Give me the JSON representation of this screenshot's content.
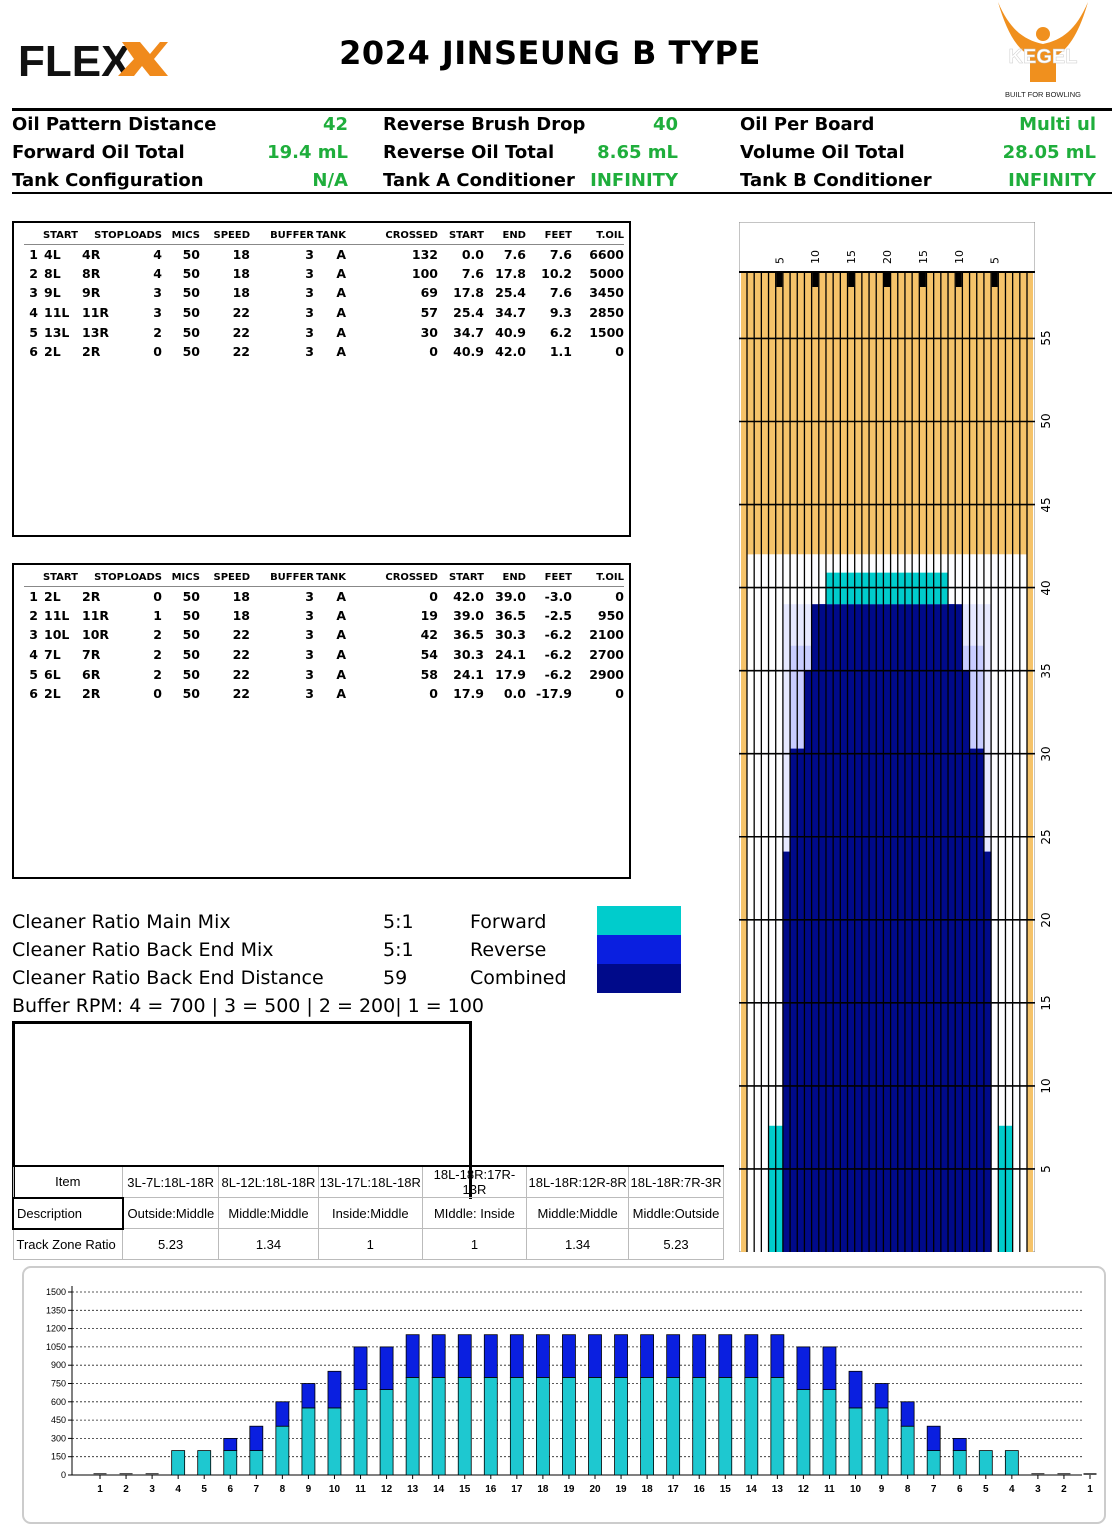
{
  "header": {
    "brand": "FLEX",
    "title": "2024 JINSEUNG B TYPE",
    "kegel_text": "KEGEL",
    "kegel_tagline": "BUILT FOR BOWLING"
  },
  "summary": [
    {
      "label": "Oil Pattern Distance",
      "value": "42"
    },
    {
      "label": "Forward Oil Total",
      "value": "19.4 mL"
    },
    {
      "label": "Tank Configuration",
      "value": "N/A"
    },
    {
      "label": "Reverse Brush Drop",
      "value": "40"
    },
    {
      "label": "Reverse Oil Total",
      "value": "8.65 mL"
    },
    {
      "label": "Tank A Conditioner",
      "value": "INFINITY"
    },
    {
      "label": "Oil Per Board",
      "value": "Multi ul"
    },
    {
      "label": "Volume Oil Total",
      "value": "28.05 mL"
    },
    {
      "label": "Tank B Conditioner",
      "value": "INFINITY"
    }
  ],
  "table_headers": [
    "",
    "START",
    "STOP",
    "LOADS",
    "MICS",
    "SPEED",
    "BUFFER",
    "TANK",
    "CROSSED",
    "START",
    "END",
    "FEET",
    "T.OIL"
  ],
  "forward_rows": [
    [
      "1",
      "4L",
      "4R",
      "4",
      "50",
      "18",
      "3",
      "A",
      "132",
      "0.0",
      "7.6",
      "7.6",
      "6600"
    ],
    [
      "2",
      "8L",
      "8R",
      "4",
      "50",
      "18",
      "3",
      "A",
      "100",
      "7.6",
      "17.8",
      "10.2",
      "5000"
    ],
    [
      "3",
      "9L",
      "9R",
      "3",
      "50",
      "18",
      "3",
      "A",
      "69",
      "17.8",
      "25.4",
      "7.6",
      "3450"
    ],
    [
      "4",
      "11L",
      "11R",
      "3",
      "50",
      "22",
      "3",
      "A",
      "57",
      "25.4",
      "34.7",
      "9.3",
      "2850"
    ],
    [
      "5",
      "13L",
      "13R",
      "2",
      "50",
      "22",
      "3",
      "A",
      "30",
      "34.7",
      "40.9",
      "6.2",
      "1500"
    ],
    [
      "6",
      "2L",
      "2R",
      "0",
      "50",
      "22",
      "3",
      "A",
      "0",
      "40.9",
      "42.0",
      "1.1",
      "0"
    ]
  ],
  "reverse_rows": [
    [
      "1",
      "2L",
      "2R",
      "0",
      "50",
      "18",
      "3",
      "A",
      "0",
      "42.0",
      "39.0",
      "-3.0",
      "0"
    ],
    [
      "2",
      "11L",
      "11R",
      "1",
      "50",
      "18",
      "3",
      "A",
      "19",
      "39.0",
      "36.5",
      "-2.5",
      "950"
    ],
    [
      "3",
      "10L",
      "10R",
      "2",
      "50",
      "22",
      "3",
      "A",
      "42",
      "36.5",
      "30.3",
      "-6.2",
      "2100"
    ],
    [
      "4",
      "7L",
      "7R",
      "2",
      "50",
      "22",
      "3",
      "A",
      "54",
      "30.3",
      "24.1",
      "-6.2",
      "2700"
    ],
    [
      "5",
      "6L",
      "6R",
      "2",
      "50",
      "22",
      "3",
      "A",
      "58",
      "24.1",
      "17.9",
      "-6.2",
      "2900"
    ],
    [
      "6",
      "2L",
      "2R",
      "0",
      "50",
      "22",
      "3",
      "A",
      "0",
      "17.9",
      "0.0",
      "-17.9",
      "0"
    ]
  ],
  "cleaner": [
    {
      "label": "Cleaner Ratio Main Mix",
      "value": "5:1"
    },
    {
      "label": "Cleaner Ratio Back End Mix",
      "value": "5:1"
    },
    {
      "label": "Cleaner Ratio Back End Distance",
      "value": "59"
    }
  ],
  "buffer_rpm": "Buffer RPM: 4 = 700 | 3 = 500 | 2 = 200| 1 = 100",
  "legend": [
    {
      "label": "Forward",
      "color": "#00cccc"
    },
    {
      "label": "Reverse",
      "color": "#0a1fe0"
    },
    {
      "label": "Combined",
      "color": "#000a8a"
    }
  ],
  "track_zone": {
    "header": [
      "Item",
      "3L-7L:18L-18R",
      "8L-12L:18L-18R",
      "13L-17L:18L-18R",
      "18L-18R:17R-13R",
      "18L-18R:12R-8R",
      "18L-18R:7R-3R"
    ],
    "description": [
      "Description",
      "Outside:Middle",
      "Middle:Middle",
      "Inside:Middle",
      "MIddle: Inside",
      "Middle:Middle",
      "Middle:Outside"
    ],
    "ratio": [
      "Track Zone Ratio",
      "5.23",
      "1.34",
      "1",
      "1",
      "1.34",
      "5.23"
    ]
  },
  "lane": {
    "board_labels": [
      "5",
      "10",
      "15",
      "20",
      "15",
      "10",
      "5"
    ],
    "distance_labels": [
      "55",
      "50",
      "45",
      "40",
      "35",
      "30",
      "25",
      "20",
      "15",
      "10",
      "5"
    ],
    "pattern_length": 42,
    "lane_length": 59,
    "forward_segments": [
      {
        "board_from": 4,
        "start": 0.0,
        "end": 7.6
      },
      {
        "board_from": 8,
        "start": 7.6,
        "end": 17.8
      },
      {
        "board_from": 9,
        "start": 17.8,
        "end": 25.4
      },
      {
        "board_from": 11,
        "start": 25.4,
        "end": 34.7
      },
      {
        "board_from": 13,
        "start": 34.7,
        "end": 40.9
      }
    ],
    "reverse_segments": [
      {
        "board_from": 11,
        "start": 36.5,
        "end": 39.0
      },
      {
        "board_from": 10,
        "start": 30.3,
        "end": 36.5
      },
      {
        "board_from": 7,
        "start": 24.1,
        "end": 30.3
      },
      {
        "board_from": 6,
        "start": 17.9,
        "end": 24.1
      }
    ],
    "colors": {
      "dry": "#f5c36a",
      "buffered": "#dde2ff",
      "forward": "#00cccc",
      "reverse": "#0a1fe0",
      "combined": "#000a8a"
    }
  },
  "chart_data": {
    "type": "bar",
    "title": "",
    "xlabel": "",
    "ylabel": "",
    "ylim": [
      0,
      1500
    ],
    "yticks": [
      "0",
      "150",
      "300",
      "450",
      "600",
      "750",
      "900",
      "1050",
      "1200",
      "1350",
      "1500"
    ],
    "categories": [
      "1",
      "2",
      "3",
      "4",
      "5",
      "6",
      "7",
      "8",
      "9",
      "10",
      "11",
      "12",
      "13",
      "14",
      "15",
      "16",
      "17",
      "18",
      "19",
      "20",
      "19",
      "18",
      "17",
      "16",
      "15",
      "14",
      "13",
      "12",
      "11",
      "10",
      "9",
      "8",
      "7",
      "6",
      "5",
      "4",
      "3",
      "2",
      "1"
    ],
    "series": [
      {
        "color": "#1ec8d0",
        "values": [
          0,
          0,
          0,
          200,
          200,
          200,
          200,
          400,
          550,
          550,
          700,
          700,
          800,
          800,
          800,
          800,
          800,
          800,
          800,
          800,
          800,
          800,
          800,
          800,
          800,
          800,
          800,
          700,
          700,
          550,
          550,
          400,
          200,
          200,
          200,
          200,
          0,
          0,
          0
        ]
      },
      {
        "color": "#0a1fe0",
        "values": [
          0,
          0,
          0,
          0,
          0,
          100,
          200,
          200,
          200,
          300,
          350,
          350,
          350,
          350,
          350,
          350,
          350,
          350,
          350,
          350,
          350,
          350,
          350,
          350,
          350,
          350,
          350,
          350,
          350,
          300,
          200,
          200,
          200,
          100,
          0,
          0,
          0,
          0,
          0
        ]
      }
    ]
  }
}
